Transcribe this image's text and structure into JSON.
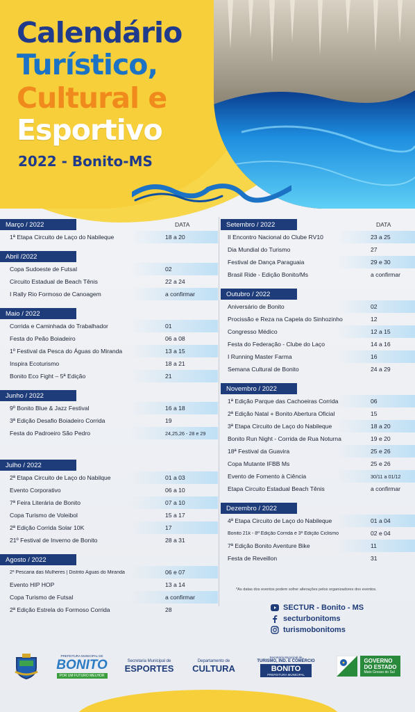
{
  "header": {
    "title_line1": "Calendário",
    "title_line2": "Turístico,",
    "title_line3": "Cultural e",
    "title_line4": "Esportivo",
    "subtitle": "2022 - Bonito-MS"
  },
  "colors": {
    "navy": "#1f3c7a",
    "blue": "#1c72c4",
    "orange": "#f08a1c",
    "yellow": "#f6cf3a",
    "light_blue": "#bfe0f5"
  },
  "date_header": "DATA",
  "left_column": [
    {
      "month": "Março / 2022",
      "show_data": true,
      "events": [
        {
          "name": "1ª Etapa Circuito de Laço do Nabileque",
          "date": "18 a 20"
        }
      ]
    },
    {
      "month": "Abril /2022",
      "show_data": false,
      "events": [
        {
          "name": "Copa Sudoeste de Futsal",
          "date": "02"
        },
        {
          "name": "Circuito Estadual de Beach Tênis",
          "date": "22 a 24"
        },
        {
          "name": "I Rally Rio Formoso de Canoagem",
          "date": "a confirmar"
        }
      ]
    },
    {
      "month": "Maio / 2022",
      "show_data": false,
      "events": [
        {
          "name": "Corrida e Caminhada do Trabalhador",
          "date": "01"
        },
        {
          "name": "Festa do Peão Boiadeiro",
          "date": "06 a 08"
        },
        {
          "name": "1º Festival da Pesca do  Águas do Miranda",
          "date": "13 a 15"
        },
        {
          "name": "Inspira Ecoturismo",
          "date": "18 a 21"
        },
        {
          "name": "Bonito Eco Fight – 5ª Edição",
          "date": "21"
        }
      ]
    },
    {
      "month": "Junho / 2022",
      "show_data": false,
      "events": [
        {
          "name": "9º Bonito Blue & Jazz Festival",
          "date": "16 a 18"
        },
        {
          "name": "3ª Edição Desafio Boiadeiro Corrida",
          "date": "19"
        },
        {
          "name": "Festa do Padroeiro São Pedro",
          "date": "24,25,26 - 28 e 29"
        },
        {
          "name": "",
          "date": ""
        }
      ]
    },
    {
      "month": "Julho / 2022",
      "show_data": false,
      "events": [
        {
          "name": "2ª Etapa Circuito de Laço do Nabilque",
          "date": "01 a 03"
        },
        {
          "name": "Evento Corporativo",
          "date": "06 a 10"
        },
        {
          "name": "7ª Feira Literária de Bonito",
          "date": "07 a 10"
        },
        {
          "name": "Copa Turismo de Voleibol",
          "date": "15 a 17"
        },
        {
          "name": "2ª Edição Corrida Solar 10K",
          "date": "17"
        },
        {
          "name": "21º Festival de Inverno de Bonito",
          "date": "28 a 31"
        }
      ]
    },
    {
      "month": "Agosto / 2022",
      "show_data": false,
      "events": [
        {
          "name": "2ª Pescaria das Mulheres | Distrito Águas do Miranda",
          "date": "06 e 07"
        },
        {
          "name": "Evento HIP HOP",
          "date": "13 a 14"
        },
        {
          "name": "Copa Turismo de Futsal",
          "date": "a confirmar"
        },
        {
          "name": "2ª Edição Estrela do Formoso Corrida",
          "date": "28"
        }
      ]
    }
  ],
  "right_column": [
    {
      "month": "Setembro / 2022",
      "show_data": true,
      "events": [
        {
          "name": "II Encontro Nacional do Clube RV10",
          "date": "23 a 25"
        },
        {
          "name": "Dia Mundial do Turismo",
          "date": "27"
        },
        {
          "name": "Festival de Dança Paraguaia",
          "date": "29 e 30"
        },
        {
          "name": "Brasil Ride - Edição Bonito/Ms",
          "date": "a confirmar"
        }
      ]
    },
    {
      "month": "Outubro / 2022",
      "show_data": false,
      "events": [
        {
          "name": "Aniversário de Bonito",
          "date": "02"
        },
        {
          "name": "Procissão e Reza na Capela do Sinhozinho",
          "date": "12"
        },
        {
          "name": "Congresso Médico",
          "date": "12 a 15"
        },
        {
          "name": "Festa do Federação - Clube do Laço",
          "date": "14 a 16"
        },
        {
          "name": "I Running Master Farma",
          "date": "16"
        },
        {
          "name": "Semana Cultural de Bonito",
          "date": "24 a 29"
        }
      ]
    },
    {
      "month": "Novembro / 2022",
      "show_data": false,
      "events": [
        {
          "name": "1ª Edição Parque das Cachoeiras Corrida",
          "date": "06"
        },
        {
          "name": "2ª Edição Natal + Bonito Abertura Oficial",
          "date": "15"
        },
        {
          "name": "3ª Etapa Circuito de Laço do Nabileque",
          "date": "18 a 20"
        },
        {
          "name": "Bonito Run Night - Corrida de Rua Noturna",
          "date": "19 e 20"
        },
        {
          "name": "18ª Festival da Guavira",
          "date": "25 e 26"
        },
        {
          "name": "Copa Mutante IFBB Ms",
          "date": "25 e 26"
        },
        {
          "name": "Evento de Fomento à Ciência",
          "date": "30/11 a 01/12"
        },
        {
          "name": "Etapa Circuito Estadual Beach Tênis",
          "date": "a confirmar"
        }
      ]
    },
    {
      "month": "Dezembro / 2022",
      "show_data": false,
      "events": [
        {
          "name": "4ª Etapa Circuito de Laço do Nabileque",
          "date": "01 a 04"
        },
        {
          "name": "Bonito 21k - 8ª Edição Corrida e 3ª Edição Ciclismo",
          "date": "02 e 04"
        },
        {
          "name": "7ª Edição Bonito Aventure Bike",
          "date": "11"
        },
        {
          "name": "Festa de Reveillon",
          "date": "31"
        }
      ]
    }
  ],
  "footnote": "*As datas dos eventos podem sofrer alterações pelos organizadores dos eventos.",
  "social": {
    "youtube": "SECTUR - Bonito - MS",
    "facebook": "secturbonitoms",
    "instagram": "turismobonitoms"
  },
  "logos": {
    "prefeitura_top": "PREFEITURA MUNICIPAL DE",
    "prefeitura_name": "BONITO",
    "prefeitura_slogan": "POR UM FUTURO MELHOR",
    "esportes_top": "Secretaria Municipal de",
    "esportes_name": "ESPORTES",
    "cultura_top": "Departamento de",
    "cultura_name": "CULTURA",
    "turismo_top": "Secretaria Municipal de",
    "turismo_mid": "TURISMO, IND. E COMÉRCIO",
    "turismo_name": "BONITO",
    "turismo_sub": "PREFEITURA MUNICIPAL",
    "governo_line1": "GOVERNO",
    "governo_line2": "DO ESTADO",
    "governo_line3": "Mato Grosso do Sul"
  }
}
